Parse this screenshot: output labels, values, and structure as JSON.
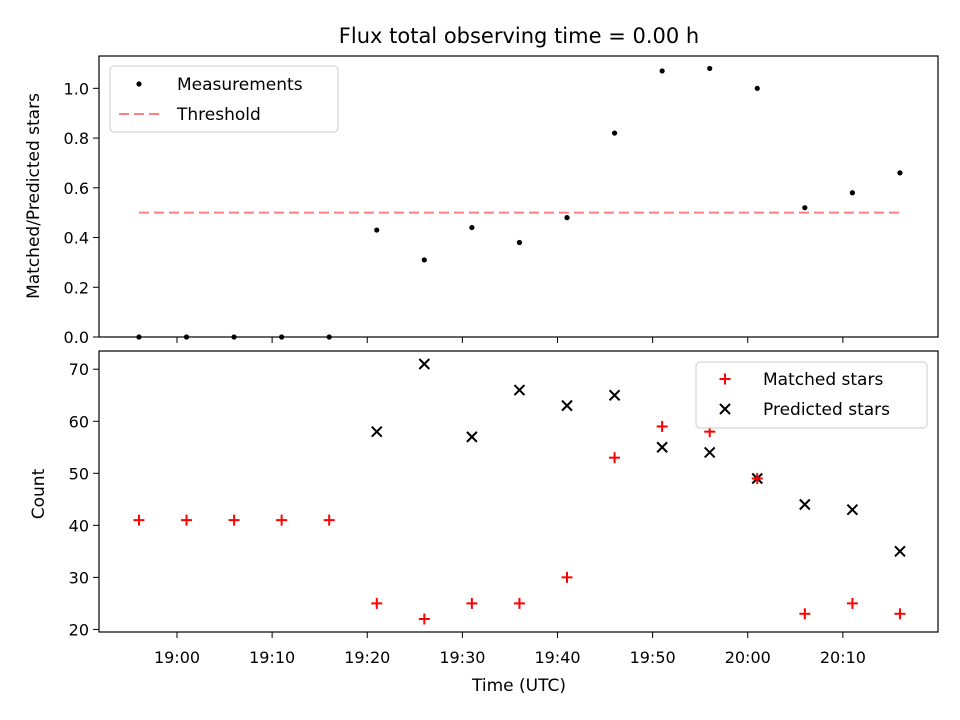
{
  "chart_data": [
    {
      "type": "scatter",
      "title": "Flux total observing time = 0.00 h",
      "xlabel": "",
      "ylabel": "Matched/Predicted stars",
      "x_minutes_since_1900": [
        -4,
        1,
        6,
        11,
        16,
        21,
        26,
        31,
        36,
        41,
        46,
        51,
        56,
        61,
        66,
        71,
        76
      ],
      "series": [
        {
          "name": "Measurements",
          "values": [
            0.0,
            0.0,
            0.0,
            0.0,
            0.0,
            0.43,
            0.31,
            0.44,
            0.38,
            0.48,
            0.82,
            1.07,
            1.08,
            1.0,
            0.52,
            0.58,
            0.66
          ],
          "color": "#000000",
          "marker": "dot"
        }
      ],
      "threshold": {
        "name": "Threshold",
        "value": 0.5,
        "x_range": [
          -4,
          76
        ],
        "color": "#ff7f7f"
      },
      "ylim": [
        0,
        1.13
      ],
      "yticks": [
        "0.0",
        "0.2",
        "0.4",
        "0.6",
        "0.8",
        "1.0"
      ],
      "legend_position": "top-left"
    },
    {
      "type": "scatter",
      "title": "",
      "xlabel": "Time (UTC)",
      "ylabel": "Count",
      "x_minutes_since_1900": [
        -4,
        1,
        6,
        11,
        16,
        21,
        26,
        31,
        36,
        41,
        46,
        51,
        56,
        61,
        66,
        71,
        76
      ],
      "series": [
        {
          "name": "Matched stars",
          "values": [
            41,
            41,
            41,
            41,
            41,
            25,
            22,
            25,
            25,
            30,
            53,
            59,
            58,
            49,
            23,
            25,
            23
          ],
          "color": "#ff0000",
          "marker": "plus"
        },
        {
          "name": "Predicted stars",
          "values": [
            null,
            null,
            null,
            null,
            null,
            58,
            71,
            57,
            66,
            63,
            65,
            55,
            54,
            49,
            44,
            43,
            35
          ],
          "color": "#000000",
          "marker": "x"
        }
      ],
      "ylim": [
        19.5,
        73.5
      ],
      "yticks": [
        "20",
        "30",
        "40",
        "50",
        "60",
        "70"
      ],
      "xticks": [
        "19:00",
        "19:10",
        "19:20",
        "19:30",
        "19:40",
        "19:50",
        "20:00",
        "20:10"
      ],
      "xlim_minutes": [
        -8.2,
        80
      ],
      "legend_position": "top-right"
    }
  ]
}
